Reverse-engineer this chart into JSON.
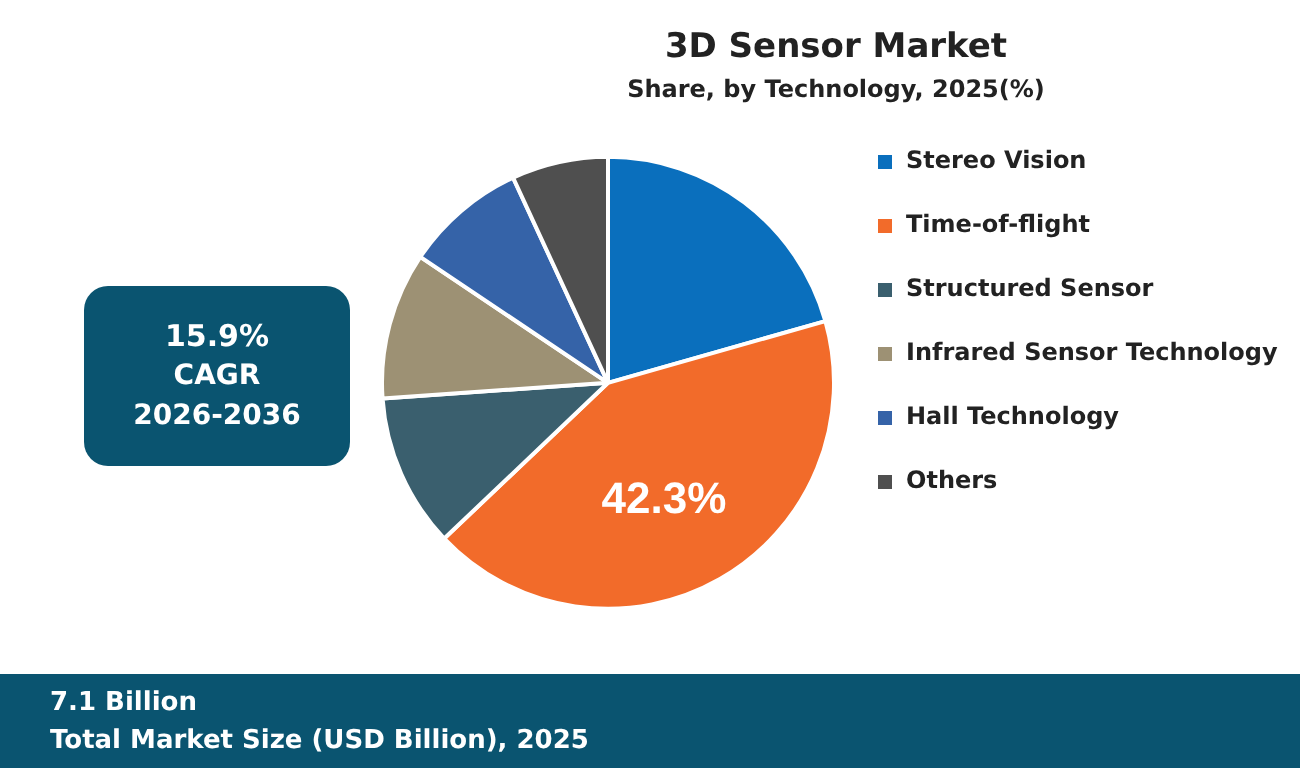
{
  "chart_data": {
    "type": "pie",
    "title": "3D Sensor Market",
    "subtitle": "Share, by Technology, 2025(%)",
    "categories": [
      "Stereo Vision",
      "Time-of-flight",
      "Structured Sensor",
      "Infrared Sensor Technology",
      "Hall Technology",
      "Others"
    ],
    "values": [
      20.6,
      42.3,
      11.0,
      10.5,
      8.7,
      6.9
    ],
    "colors": [
      "#0a6fbd",
      "#f26b2a",
      "#3a5f6e",
      "#9d9174",
      "#3563a8",
      "#4f4f4f"
    ],
    "value_labels": [
      null,
      "42.3%",
      null,
      null,
      null,
      null
    ],
    "legend": "right",
    "annotations": [
      "15.9%",
      "CAGR",
      "2026-2036",
      "7.1 Billion",
      "Total Market Size (USD Billion), 2025"
    ]
  }
}
